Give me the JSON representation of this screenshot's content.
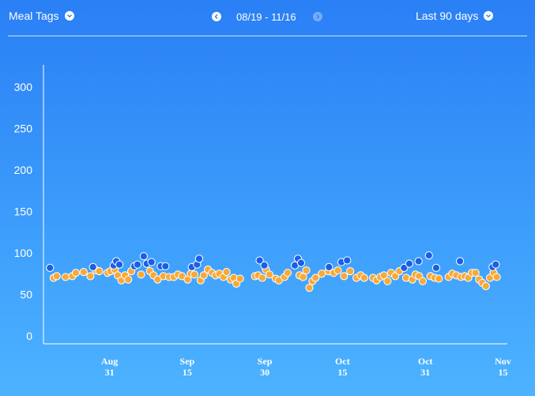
{
  "header": {
    "tags_label": "Meal Tags",
    "date_range": "08/19 - 11/16",
    "period_label": "Last 90 days"
  },
  "colors": {
    "orange": "#f7a93a",
    "blue": "#1a5fe8",
    "axis": "#ffffff"
  },
  "icons": {
    "tags_toggle": "chevron-down-icon",
    "prev": "chevron-left-icon",
    "next": "chevron-right-icon",
    "period_toggle": "chevron-down-icon"
  },
  "chart_data": {
    "type": "scatter",
    "ylim": [
      0,
      330
    ],
    "y_ticks": [
      0,
      50,
      100,
      150,
      200,
      250,
      300
    ],
    "xlim": [
      0,
      89
    ],
    "x_ticks": [
      {
        "x": 12,
        "top": "Aug",
        "bottom": "31"
      },
      {
        "x": 27,
        "top": "Sep",
        "bottom": "15"
      },
      {
        "x": 42,
        "top": "Sep",
        "bottom": "30"
      },
      {
        "x": 57,
        "top": "Oct",
        "bottom": "15"
      },
      {
        "x": 73,
        "top": "Oct",
        "bottom": "31"
      },
      {
        "x": 88,
        "top": "Nov",
        "bottom": "15"
      }
    ],
    "series": [
      {
        "color_key": "orange",
        "points": [
          [
            1.2,
            70
          ],
          [
            1.8,
            72
          ],
          [
            3.5,
            71
          ],
          [
            4.8,
            72
          ],
          [
            5.5,
            76
          ],
          [
            7.0,
            77
          ],
          [
            8.3,
            72
          ],
          [
            9.4,
            79
          ],
          [
            10.0,
            78
          ],
          [
            11.6,
            76
          ],
          [
            12.2,
            78
          ],
          [
            13.0,
            80
          ],
          [
            13.6,
            73
          ],
          [
            14.3,
            67
          ],
          [
            15.0,
            73
          ],
          [
            15.6,
            68
          ],
          [
            16.2,
            78
          ],
          [
            18.1,
            74
          ],
          [
            19.8,
            78
          ],
          [
            20.5,
            73
          ],
          [
            21.3,
            68
          ],
          [
            22.4,
            72
          ],
          [
            23.5,
            71
          ],
          [
            24.4,
            71
          ],
          [
            25.2,
            74
          ],
          [
            26.0,
            72
          ],
          [
            27.1,
            68
          ],
          [
            27.7,
            75
          ],
          [
            28.4,
            74
          ],
          [
            29.6,
            67
          ],
          [
            30.2,
            73
          ],
          [
            31.0,
            80
          ],
          [
            31.8,
            76
          ],
          [
            32.5,
            73
          ],
          [
            33.2,
            75
          ],
          [
            34.0,
            71
          ],
          [
            34.6,
            77
          ],
          [
            35.4,
            68
          ],
          [
            36.0,
            70
          ],
          [
            36.5,
            63
          ],
          [
            37.2,
            69
          ],
          [
            40.1,
            72
          ],
          [
            40.7,
            73
          ],
          [
            41.5,
            70
          ],
          [
            42.2,
            80
          ],
          [
            42.9,
            74
          ],
          [
            44.1,
            69
          ],
          [
            44.7,
            67
          ],
          [
            45.8,
            71
          ],
          [
            46.4,
            76
          ],
          [
            48.7,
            73
          ],
          [
            49.4,
            71
          ],
          [
            50.0,
            79
          ],
          [
            50.6,
            58
          ],
          [
            51.2,
            66
          ],
          [
            51.8,
            70
          ],
          [
            53.0,
            75
          ],
          [
            54.3,
            78
          ],
          [
            55.3,
            76
          ],
          [
            56.1,
            79
          ],
          [
            57.3,
            72
          ],
          [
            58.5,
            78
          ],
          [
            59.7,
            70
          ],
          [
            60.5,
            73
          ],
          [
            61.2,
            70
          ],
          [
            62.9,
            70
          ],
          [
            63.6,
            67
          ],
          [
            64.3,
            71
          ],
          [
            65.0,
            73
          ],
          [
            65.7,
            66
          ],
          [
            66.4,
            76
          ],
          [
            67.2,
            72
          ],
          [
            68.0,
            78
          ],
          [
            69.3,
            70
          ],
          [
            70.5,
            68
          ],
          [
            71.1,
            74
          ],
          [
            71.8,
            72
          ],
          [
            72.5,
            66
          ],
          [
            74.0,
            72
          ],
          [
            74.8,
            70
          ],
          [
            75.6,
            69
          ],
          [
            77.5,
            71
          ],
          [
            78.2,
            75
          ],
          [
            79.0,
            73
          ],
          [
            79.9,
            71
          ],
          [
            80.6,
            72
          ],
          [
            81.3,
            70
          ],
          [
            82.0,
            76
          ],
          [
            82.7,
            76
          ],
          [
            83.4,
            68
          ],
          [
            84.0,
            64
          ],
          [
            84.7,
            60
          ],
          [
            85.5,
            70
          ],
          [
            86.2,
            76
          ],
          [
            86.8,
            71
          ]
        ]
      },
      {
        "color_key": "blue",
        "points": [
          [
            0.5,
            82
          ],
          [
            8.8,
            83
          ],
          [
            12.8,
            85
          ],
          [
            13.3,
            90
          ],
          [
            13.9,
            86
          ],
          [
            16.8,
            84
          ],
          [
            17.4,
            86
          ],
          [
            18.6,
            96
          ],
          [
            19.2,
            87
          ],
          [
            20.1,
            89
          ],
          [
            21.9,
            84
          ],
          [
            22.8,
            84
          ],
          [
            27.9,
            83
          ],
          [
            28.9,
            86
          ],
          [
            29.3,
            93
          ],
          [
            41.0,
            91
          ],
          [
            41.9,
            85
          ],
          [
            47.8,
            85
          ],
          [
            48.4,
            93
          ],
          [
            49.0,
            88
          ],
          [
            54.4,
            83
          ],
          [
            56.8,
            89
          ],
          [
            57.9,
            91
          ],
          [
            68.9,
            82
          ],
          [
            69.9,
            87
          ],
          [
            71.7,
            90
          ],
          [
            73.7,
            97
          ],
          [
            75.1,
            82
          ],
          [
            79.7,
            90
          ],
          [
            86.0,
            83
          ],
          [
            86.6,
            86
          ]
        ]
      }
    ]
  }
}
